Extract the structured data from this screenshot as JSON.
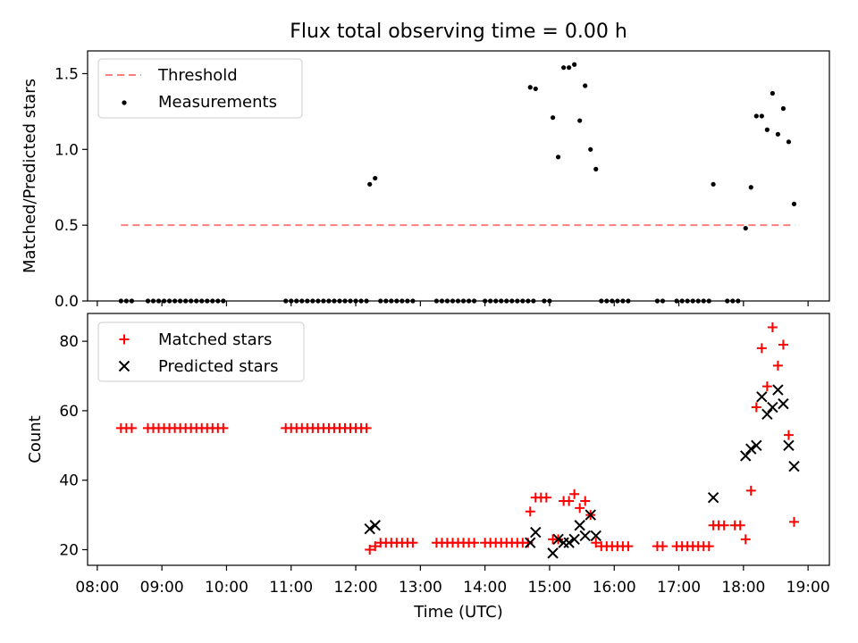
{
  "figure": {
    "title": "Flux total observing time = 0.00 h"
  },
  "chart_data": [
    {
      "type": "scatter",
      "title": "Flux total observing time = 0.00 h",
      "xlabel": "",
      "ylabel": "Matched/Predicted stars",
      "xlim": [
        7.85,
        19.33
      ],
      "ylim": [
        0,
        1.65
      ],
      "yticks": [
        0.0,
        0.5,
        1.0,
        1.5
      ],
      "ytick_labels": [
        "0.0",
        "0.5",
        "1.0",
        "1.5"
      ],
      "legend_position": "upper left",
      "threshold": {
        "name": "Threshold",
        "color": "#ff7f7f",
        "style": "dashed",
        "value": 0.5,
        "x_start": "08:22",
        "x_end": "18:48"
      },
      "series": [
        {
          "name": "Measurements",
          "color": "#000000",
          "marker": "dot",
          "points": [
            [
              "08:22",
              0
            ],
            [
              "08:27",
              0
            ],
            [
              "08:32",
              0
            ],
            [
              "08:47",
              0
            ],
            [
              "08:52",
              0
            ],
            [
              "08:57",
              0
            ],
            [
              "09:02",
              0
            ],
            [
              "09:07",
              0
            ],
            [
              "09:12",
              0
            ],
            [
              "09:17",
              0
            ],
            [
              "09:22",
              0
            ],
            [
              "09:27",
              0
            ],
            [
              "09:32",
              0
            ],
            [
              "09:37",
              0
            ],
            [
              "09:42",
              0
            ],
            [
              "09:47",
              0
            ],
            [
              "09:52",
              0
            ],
            [
              "09:57",
              0
            ],
            [
              "10:55",
              0
            ],
            [
              "11:00",
              0
            ],
            [
              "11:05",
              0
            ],
            [
              "11:10",
              0
            ],
            [
              "11:15",
              0
            ],
            [
              "11:20",
              0
            ],
            [
              "11:25",
              0
            ],
            [
              "11:30",
              0
            ],
            [
              "11:35",
              0
            ],
            [
              "11:40",
              0
            ],
            [
              "11:45",
              0
            ],
            [
              "11:50",
              0
            ],
            [
              "11:55",
              0
            ],
            [
              "12:00",
              0
            ],
            [
              "12:05",
              0
            ],
            [
              "12:10",
              0
            ],
            [
              "12:13",
              0.77
            ],
            [
              "12:18",
              0.81
            ],
            [
              "12:23",
              0
            ],
            [
              "12:28",
              0
            ],
            [
              "12:33",
              0
            ],
            [
              "12:38",
              0
            ],
            [
              "12:43",
              0
            ],
            [
              "12:48",
              0
            ],
            [
              "12:53",
              0
            ],
            [
              "13:15",
              0
            ],
            [
              "13:20",
              0
            ],
            [
              "13:25",
              0
            ],
            [
              "13:30",
              0
            ],
            [
              "13:35",
              0
            ],
            [
              "13:40",
              0
            ],
            [
              "13:45",
              0
            ],
            [
              "13:50",
              0
            ],
            [
              "14:00",
              0
            ],
            [
              "14:05",
              0
            ],
            [
              "14:10",
              0
            ],
            [
              "14:15",
              0
            ],
            [
              "14:20",
              0
            ],
            [
              "14:25",
              0
            ],
            [
              "14:30",
              0
            ],
            [
              "14:35",
              0
            ],
            [
              "14:40",
              0
            ],
            [
              "14:45",
              0
            ],
            [
              "14:42",
              1.41
            ],
            [
              "14:47",
              1.4
            ],
            [
              "14:55",
              0
            ],
            [
              "15:00",
              0
            ],
            [
              "15:03",
              1.21
            ],
            [
              "15:08",
              0.95
            ],
            [
              "15:13",
              1.54
            ],
            [
              "15:18",
              1.54
            ],
            [
              "15:23",
              1.56
            ],
            [
              "15:28",
              1.19
            ],
            [
              "15:33",
              1.42
            ],
            [
              "15:38",
              1.0
            ],
            [
              "15:43",
              0.87
            ],
            [
              "15:48",
              0
            ],
            [
              "15:53",
              0
            ],
            [
              "15:58",
              0
            ],
            [
              "16:03",
              0
            ],
            [
              "16:08",
              0
            ],
            [
              "16:13",
              0
            ],
            [
              "16:40",
              0
            ],
            [
              "16:45",
              0
            ],
            [
              "16:58",
              0
            ],
            [
              "17:03",
              0
            ],
            [
              "17:08",
              0
            ],
            [
              "17:13",
              0
            ],
            [
              "17:18",
              0
            ],
            [
              "17:23",
              0
            ],
            [
              "17:28",
              0
            ],
            [
              "17:32",
              0.77
            ],
            [
              "17:45",
              0
            ],
            [
              "17:50",
              0
            ],
            [
              "17:55",
              0
            ],
            [
              "18:02",
              0.48
            ],
            [
              "18:07",
              0.75
            ],
            [
              "18:12",
              1.22
            ],
            [
              "18:17",
              1.22
            ],
            [
              "18:22",
              1.13
            ],
            [
              "18:27",
              1.37
            ],
            [
              "18:32",
              1.1
            ],
            [
              "18:37",
              1.27
            ],
            [
              "18:42",
              1.05
            ],
            [
              "18:47",
              0.64
            ]
          ]
        }
      ]
    },
    {
      "type": "scatter",
      "title": "",
      "xlabel": "Time (UTC)",
      "ylabel": "Count",
      "xlim": [
        7.85,
        19.33
      ],
      "ylim": [
        15.5,
        88
      ],
      "xticks": [
        "08:00",
        "09:00",
        "10:00",
        "11:00",
        "12:00",
        "13:00",
        "14:00",
        "15:00",
        "16:00",
        "17:00",
        "18:00",
        "19:00"
      ],
      "yticks": [
        20,
        40,
        60,
        80
      ],
      "ytick_labels": [
        "20",
        "40",
        "60",
        "80"
      ],
      "legend_position": "upper left",
      "series": [
        {
          "name": "Matched stars",
          "color": "#ff0000",
          "marker": "plus",
          "points": [
            [
              "08:22",
              55
            ],
            [
              "08:27",
              55
            ],
            [
              "08:32",
              55
            ],
            [
              "08:47",
              55
            ],
            [
              "08:52",
              55
            ],
            [
              "08:57",
              55
            ],
            [
              "09:02",
              55
            ],
            [
              "09:07",
              55
            ],
            [
              "09:12",
              55
            ],
            [
              "09:17",
              55
            ],
            [
              "09:22",
              55
            ],
            [
              "09:27",
              55
            ],
            [
              "09:32",
              55
            ],
            [
              "09:37",
              55
            ],
            [
              "09:42",
              55
            ],
            [
              "09:47",
              55
            ],
            [
              "09:52",
              55
            ],
            [
              "09:57",
              55
            ],
            [
              "10:55",
              55
            ],
            [
              "11:00",
              55
            ],
            [
              "11:05",
              55
            ],
            [
              "11:10",
              55
            ],
            [
              "11:15",
              55
            ],
            [
              "11:20",
              55
            ],
            [
              "11:25",
              55
            ],
            [
              "11:30",
              55
            ],
            [
              "11:35",
              55
            ],
            [
              "11:40",
              55
            ],
            [
              "11:45",
              55
            ],
            [
              "11:50",
              55
            ],
            [
              "11:55",
              55
            ],
            [
              "12:00",
              55
            ],
            [
              "12:05",
              55
            ],
            [
              "12:10",
              55
            ],
            [
              "12:13",
              20
            ],
            [
              "12:18",
              21
            ],
            [
              "12:23",
              22
            ],
            [
              "12:28",
              22
            ],
            [
              "12:33",
              22
            ],
            [
              "12:38",
              22
            ],
            [
              "12:43",
              22
            ],
            [
              "12:48",
              22
            ],
            [
              "12:53",
              22
            ],
            [
              "13:15",
              22
            ],
            [
              "13:20",
              22
            ],
            [
              "13:25",
              22
            ],
            [
              "13:30",
              22
            ],
            [
              "13:35",
              22
            ],
            [
              "13:40",
              22
            ],
            [
              "13:45",
              22
            ],
            [
              "13:50",
              22
            ],
            [
              "14:00",
              22
            ],
            [
              "14:05",
              22
            ],
            [
              "14:10",
              22
            ],
            [
              "14:15",
              22
            ],
            [
              "14:20",
              22
            ],
            [
              "14:25",
              22
            ],
            [
              "14:30",
              22
            ],
            [
              "14:35",
              22
            ],
            [
              "14:40",
              22
            ],
            [
              "14:42",
              31
            ],
            [
              "14:47",
              35
            ],
            [
              "14:52",
              35
            ],
            [
              "14:57",
              35
            ],
            [
              "15:03",
              23
            ],
            [
              "15:08",
              23
            ],
            [
              "15:13",
              34
            ],
            [
              "15:18",
              34
            ],
            [
              "15:23",
              36
            ],
            [
              "15:28",
              32
            ],
            [
              "15:33",
              34
            ],
            [
              "15:38",
              30
            ],
            [
              "15:43",
              22
            ],
            [
              "15:48",
              21
            ],
            [
              "15:53",
              21
            ],
            [
              "15:58",
              21
            ],
            [
              "16:03",
              21
            ],
            [
              "16:08",
              21
            ],
            [
              "16:13",
              21
            ],
            [
              "16:40",
              21
            ],
            [
              "16:45",
              21
            ],
            [
              "16:58",
              21
            ],
            [
              "17:03",
              21
            ],
            [
              "17:08",
              21
            ],
            [
              "17:13",
              21
            ],
            [
              "17:18",
              21
            ],
            [
              "17:23",
              21
            ],
            [
              "17:28",
              21
            ],
            [
              "17:32",
              27
            ],
            [
              "17:37",
              27
            ],
            [
              "17:42",
              27
            ],
            [
              "17:52",
              27
            ],
            [
              "17:57",
              27
            ],
            [
              "18:02",
              23
            ],
            [
              "18:07",
              37
            ],
            [
              "18:12",
              61
            ],
            [
              "18:17",
              78
            ],
            [
              "18:22",
              67
            ],
            [
              "18:27",
              84
            ],
            [
              "18:32",
              73
            ],
            [
              "18:37",
              79
            ],
            [
              "18:42",
              53
            ],
            [
              "18:47",
              28
            ]
          ]
        },
        {
          "name": "Predicted stars",
          "color": "#000000",
          "marker": "x",
          "points": [
            [
              "12:13",
              26
            ],
            [
              "12:18",
              27
            ],
            [
              "14:42",
              22
            ],
            [
              "14:47",
              25
            ],
            [
              "15:03",
              19
            ],
            [
              "15:08",
              23
            ],
            [
              "15:13",
              22
            ],
            [
              "15:18",
              22
            ],
            [
              "15:23",
              23
            ],
            [
              "15:28",
              27
            ],
            [
              "15:33",
              24
            ],
            [
              "15:38",
              30
            ],
            [
              "15:43",
              24
            ],
            [
              "17:32",
              35
            ],
            [
              "18:02",
              47
            ],
            [
              "18:07",
              49
            ],
            [
              "18:12",
              50
            ],
            [
              "18:17",
              64
            ],
            [
              "18:22",
              59
            ],
            [
              "18:27",
              61
            ],
            [
              "18:32",
              66
            ],
            [
              "18:37",
              62
            ],
            [
              "18:42",
              50
            ],
            [
              "18:47",
              44
            ]
          ]
        }
      ]
    }
  ]
}
